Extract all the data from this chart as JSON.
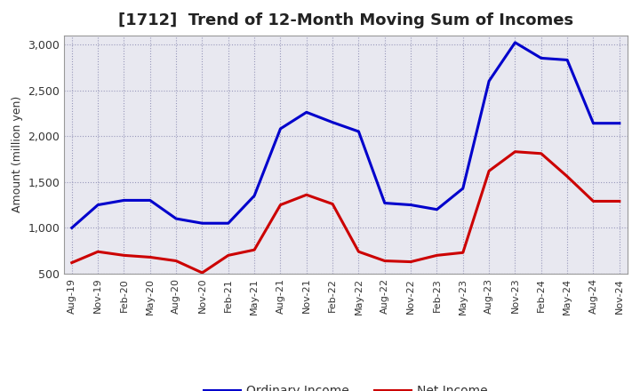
{
  "title": "[1712]  Trend of 12-Month Moving Sum of Incomes",
  "ylabel": "Amount (million yen)",
  "x_labels": [
    "Aug-19",
    "Nov-19",
    "Feb-20",
    "May-20",
    "Aug-20",
    "Nov-20",
    "Feb-21",
    "May-21",
    "Aug-21",
    "Nov-21",
    "Feb-22",
    "May-22",
    "Aug-22",
    "Nov-22",
    "Feb-23",
    "May-23",
    "Aug-23",
    "Nov-23",
    "Feb-24",
    "May-24",
    "Aug-24",
    "Nov-24"
  ],
  "ordinary_income": [
    1000,
    1250,
    1300,
    1300,
    1100,
    1050,
    1050,
    1350,
    2080,
    2260,
    2150,
    2050,
    1270,
    1250,
    1200,
    1430,
    2600,
    3020,
    2850,
    2830,
    2140,
    2140
  ],
  "net_income": [
    620,
    740,
    700,
    680,
    640,
    510,
    700,
    760,
    1250,
    1360,
    1260,
    740,
    640,
    630,
    700,
    730,
    1620,
    1830,
    1810,
    1560,
    1290,
    1290
  ],
  "ordinary_color": "#0000cc",
  "net_color": "#cc0000",
  "ylim": [
    500,
    3100
  ],
  "yticks": [
    500,
    1000,
    1500,
    2000,
    2500,
    3000
  ],
  "plot_bg_color": "#e8e8f0",
  "fig_bg_color": "#ffffff",
  "grid_color": "#9999bb",
  "title_fontsize": 13,
  "title_color": "#222222",
  "axis_label_fontsize": 9,
  "tick_fontsize": 9,
  "legend_fontsize": 10,
  "line_width": 2.2
}
